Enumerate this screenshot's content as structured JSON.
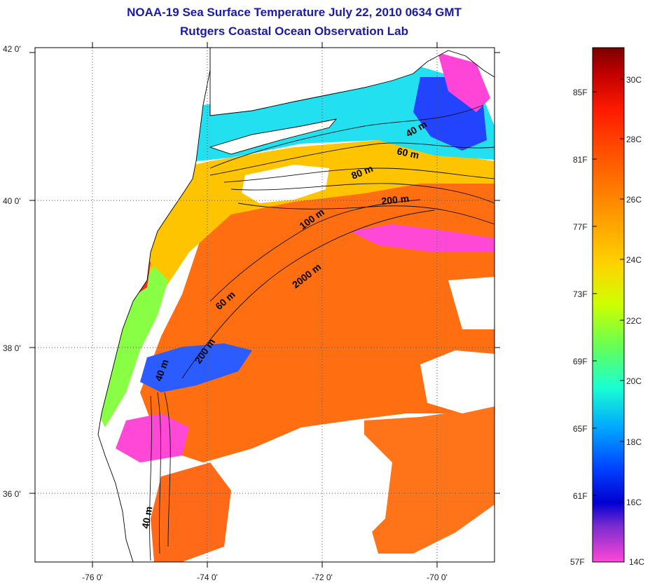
{
  "title": "NOAA-19 Sea Surface Temperature July 22, 2010 0634 GMT",
  "subtitle": "Rutgers Coastal Ocean Observation Lab",
  "latitude_labels": [
    "42 0'",
    "40 0'",
    "38 0'",
    "36 0'"
  ],
  "longitude_labels": [
    "-76 0'",
    "-74 0'",
    "-72 0'",
    "-70 0'"
  ],
  "depth_contours": [
    "40 m",
    "60 m",
    "80 m",
    "100 m",
    "200 m",
    "2000 m",
    "60 m",
    "200 m",
    "40 m",
    "40 m"
  ],
  "colorbar": {
    "fahrenheit": [
      "85F",
      "81F",
      "77F",
      "73F",
      "69F",
      "65F",
      "61F",
      "57F"
    ],
    "celsius": [
      "30C",
      "28C",
      "26C",
      "24C",
      "22C",
      "20C",
      "18C",
      "16C",
      "14C"
    ],
    "colors": [
      "#7a0000",
      "#d40000",
      "#ff3a00",
      "#ff8a00",
      "#ffd200",
      "#e6ff00",
      "#7dff3a",
      "#18ffd0",
      "#00b6ff",
      "#0040ff",
      "#0000d8",
      "#8a2bd0",
      "#ff40d8"
    ]
  },
  "palette": {
    "land": "#ffffff",
    "warm": "#ff6a14",
    "hot": "#e01818",
    "yellow": "#ffcc00",
    "green": "#66ff66",
    "cyan": "#22e6ff",
    "blue": "#1a4dff",
    "magenta": "#ff44d8"
  }
}
